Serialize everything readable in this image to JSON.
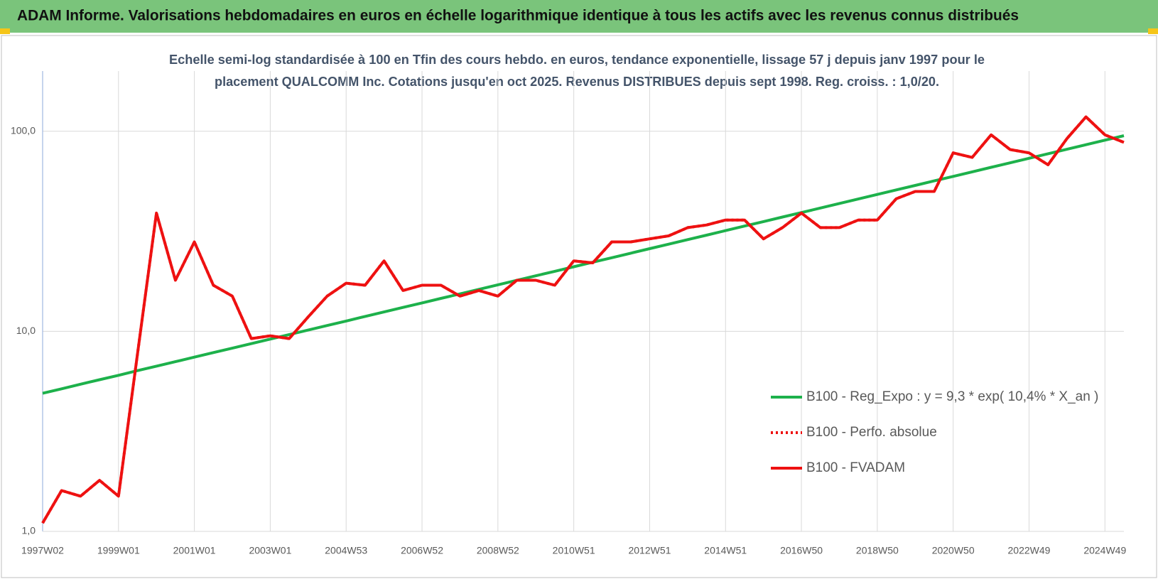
{
  "header": {
    "title": "ADAM Informe. Valorisations hebdomadaires en euros en échelle logarithmique identique à tous les actifs avec les revenus connus distribués"
  },
  "chart_data": {
    "type": "line",
    "title": [
      "Echelle semi-log standardisée à 100 en Tfin des cours hebdo. en euros, tendance exponentielle, lissage 57 j depuis janv 1997 pour le",
      "placement QUALCOMM Inc.  Cotations jusqu'en oct 2025. Revenus DISTRIBUES depuis sept 1998. Reg. croiss. : 1,0/20."
    ],
    "log_scale": true,
    "grid": true,
    "legend_position": "right",
    "ylim": [
      1,
      200
    ],
    "yticks": [
      {
        "value": 1,
        "label": "1,0"
      },
      {
        "value": 10,
        "label": "10,0"
      },
      {
        "value": 100,
        "label": "100,0"
      }
    ],
    "categories": [
      "1997W02",
      null,
      null,
      null,
      "1999W01",
      null,
      null,
      null,
      "2001W01",
      null,
      null,
      null,
      "2003W01",
      null,
      null,
      null,
      "2004W53",
      null,
      null,
      null,
      "2006W52",
      null,
      null,
      null,
      "2008W52",
      null,
      null,
      null,
      "2010W51",
      null,
      null,
      null,
      "2012W51",
      null,
      null,
      null,
      "2014W51",
      null,
      null,
      null,
      "2016W50",
      null,
      null,
      null,
      "2018W50",
      null,
      null,
      null,
      "2020W50",
      null,
      null,
      null,
      "2022W49",
      null,
      null,
      null,
      "2024W49",
      null
    ],
    "series": [
      {
        "name": "B100 - Reg_Expo : y = 9,3 * exp( 10,4% *  X_an )",
        "color": "#1db14b",
        "style": "solid",
        "values": [
          4.9,
          5.16,
          5.44,
          5.73,
          6.03,
          6.36,
          6.7,
          7.05,
          7.43,
          7.83,
          8.24,
          8.68,
          9.15,
          9.64,
          10.15,
          10.69,
          11.26,
          11.87,
          12.5,
          13.17,
          13.87,
          14.61,
          15.39,
          16.21,
          17.08,
          17.99,
          18.95,
          19.96,
          21.03,
          22.15,
          23.33,
          24.58,
          25.89,
          27.27,
          28.73,
          30.26,
          31.88,
          33.58,
          35.37,
          37.26,
          39.25,
          41.35,
          43.56,
          45.88,
          48.33,
          50.91,
          53.63,
          56.5,
          59.51,
          62.69,
          66.04,
          69.56,
          73.28,
          77.19,
          81.31,
          85.66,
          90.23,
          95.05
        ]
      },
      {
        "name": "B100 - Perfo. absolue",
        "color": "#ee1111",
        "style": "dotted",
        "values": [
          1.1,
          1.6,
          1.5,
          1.8,
          1.5,
          7.7,
          39,
          18,
          28,
          17,
          15,
          9.2,
          9.5,
          9.2,
          11.8,
          15,
          17.4,
          17,
          22.5,
          16,
          17,
          17,
          15,
          16,
          15,
          18,
          18,
          17,
          22.5,
          22,
          28,
          28,
          29,
          30,
          33,
          34,
          36,
          36,
          29,
          33,
          39,
          33,
          33,
          36,
          36,
          46,
          50,
          50,
          78,
          74,
          96,
          81,
          78,
          68,
          92,
          118,
          96,
          88
        ]
      },
      {
        "name": "B100 - FVADAM",
        "color": "#ee1111",
        "style": "solid",
        "values": [
          1.1,
          1.6,
          1.5,
          1.8,
          1.5,
          7.7,
          39,
          18,
          28,
          17,
          15,
          9.2,
          9.5,
          9.2,
          11.8,
          15,
          17.4,
          17,
          22.5,
          16,
          17,
          17,
          15,
          16,
          15,
          18,
          18,
          17,
          22.5,
          22,
          28,
          28,
          29,
          30,
          33,
          34,
          36,
          36,
          29,
          33,
          39,
          33,
          33,
          36,
          36,
          46,
          50,
          50,
          78,
          74,
          96,
          81,
          78,
          68,
          92,
          118,
          96,
          88
        ]
      }
    ]
  }
}
